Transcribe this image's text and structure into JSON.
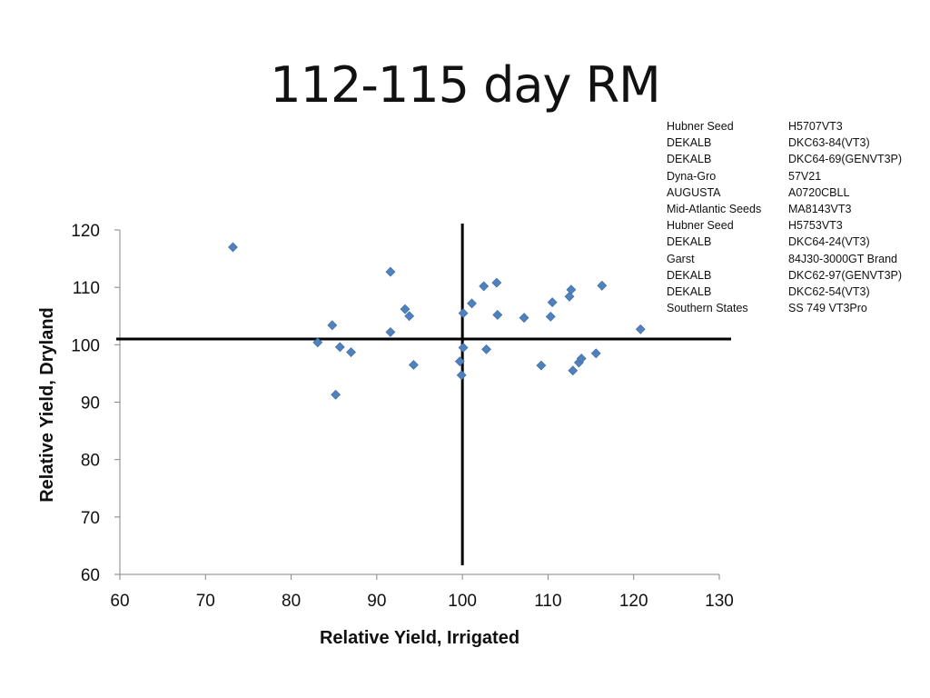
{
  "title": "112-115 day RM",
  "legend": [
    {
      "company": "Hubner Seed",
      "hybrid": "H5707VT3"
    },
    {
      "company": "DEKALB",
      "hybrid": "DKC63-84(VT3)"
    },
    {
      "company": "DEKALB",
      "hybrid": "DKC64-69(GENVT3P)"
    },
    {
      "company": "Dyna-Gro",
      "hybrid": "57V21"
    },
    {
      "company": "AUGUSTA",
      "hybrid": "A0720CBLL"
    },
    {
      "company": "Mid-Atlantic Seeds",
      "hybrid": "MA8143VT3"
    },
    {
      "company": "Hubner Seed",
      "hybrid": "H5753VT3"
    },
    {
      "company": "DEKALB",
      "hybrid": "DKC64-24(VT3)"
    },
    {
      "company": "Garst",
      "hybrid": "84J30-3000GT Brand"
    },
    {
      "company": "DEKALB",
      "hybrid": "DKC62-97(GENVT3P)"
    },
    {
      "company": "DEKALB",
      "hybrid": "DKC62-54(VT3)"
    },
    {
      "company": "Southern States",
      "hybrid": "SS 749 VT3Pro"
    }
  ],
  "chart_data": {
    "type": "scatter",
    "xlabel": "Relative Yield, Irrigated",
    "ylabel": "Relative Yield, Dryland",
    "xlim": [
      60,
      130
    ],
    "ylim": [
      60,
      120
    ],
    "xticks": [
      60,
      70,
      80,
      90,
      100,
      110,
      120,
      130
    ],
    "yticks": [
      60,
      70,
      80,
      90,
      100,
      110,
      120
    ],
    "reference_lines": {
      "x": 100,
      "y": 101
    },
    "marker": "diamond",
    "color": "#4f81bd",
    "grid": false,
    "points": [
      {
        "x": 73.2,
        "y": 117.0
      },
      {
        "x": 83.1,
        "y": 100.4
      },
      {
        "x": 84.8,
        "y": 103.4
      },
      {
        "x": 85.2,
        "y": 91.3
      },
      {
        "x": 85.7,
        "y": 99.6
      },
      {
        "x": 87.0,
        "y": 98.7
      },
      {
        "x": 91.6,
        "y": 112.7
      },
      {
        "x": 91.6,
        "y": 102.2
      },
      {
        "x": 93.3,
        "y": 106.2
      },
      {
        "x": 93.8,
        "y": 105.0
      },
      {
        "x": 94.3,
        "y": 96.5
      },
      {
        "x": 99.7,
        "y": 97.1
      },
      {
        "x": 99.9,
        "y": 94.7
      },
      {
        "x": 100.1,
        "y": 105.5
      },
      {
        "x": 100.1,
        "y": 99.5
      },
      {
        "x": 101.1,
        "y": 107.2
      },
      {
        "x": 102.5,
        "y": 110.2
      },
      {
        "x": 102.8,
        "y": 99.2
      },
      {
        "x": 104.0,
        "y": 110.8
      },
      {
        "x": 104.1,
        "y": 105.2
      },
      {
        "x": 107.2,
        "y": 104.7
      },
      {
        "x": 109.2,
        "y": 96.4
      },
      {
        "x": 110.3,
        "y": 104.9
      },
      {
        "x": 110.5,
        "y": 107.4
      },
      {
        "x": 112.5,
        "y": 108.4
      },
      {
        "x": 112.7,
        "y": 109.6
      },
      {
        "x": 112.9,
        "y": 95.5
      },
      {
        "x": 113.6,
        "y": 96.9
      },
      {
        "x": 113.9,
        "y": 97.6
      },
      {
        "x": 115.6,
        "y": 98.5
      },
      {
        "x": 116.3,
        "y": 110.3
      },
      {
        "x": 120.8,
        "y": 102.7
      }
    ]
  }
}
